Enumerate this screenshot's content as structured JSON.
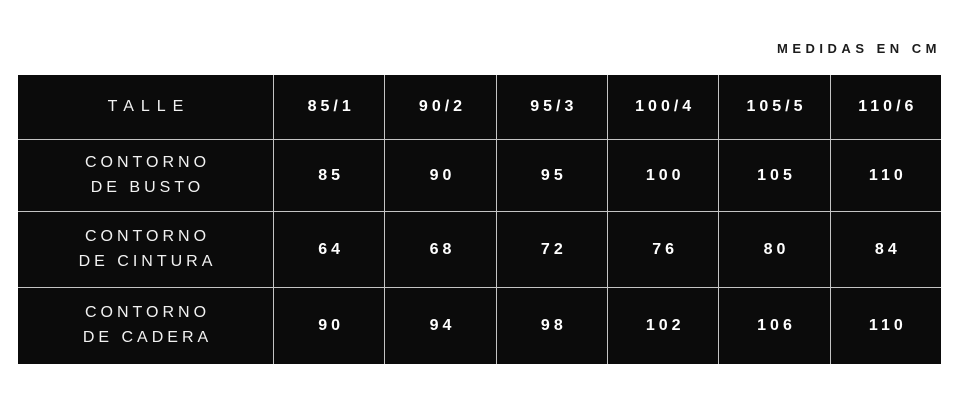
{
  "note": "MEDIDAS EN CM",
  "table": {
    "header_label": "TALLE",
    "sizes": [
      "85/1",
      "90/2",
      "95/3",
      "100/4",
      "105/5",
      "110/6"
    ],
    "rows": [
      {
        "label": [
          "CONTORNO",
          "DE BUSTO"
        ],
        "values": [
          "85",
          "90",
          "95",
          "100",
          "105",
          "110"
        ]
      },
      {
        "label": [
          "CONTORNO",
          "DE CINTURA"
        ],
        "values": [
          "64",
          "68",
          "72",
          "76",
          "80",
          "84"
        ]
      },
      {
        "label": [
          "CONTORNO",
          "DE CADERA"
        ],
        "values": [
          "90",
          "94",
          "98",
          "102",
          "106",
          "110"
        ]
      }
    ]
  },
  "colors": {
    "page_bg": "#ffffff",
    "cell_bg": "#0b0b0b",
    "grid_line": "#c4c4c4",
    "cell_text": "#ffffff",
    "note_text": "#1c1c1c"
  },
  "chart_data": {
    "type": "table",
    "title": "MEDIDAS EN CM",
    "columns": [
      "TALLE",
      "85/1",
      "90/2",
      "95/3",
      "100/4",
      "105/5",
      "110/6"
    ],
    "rows": [
      [
        "CONTORNO DE BUSTO",
        85,
        90,
        95,
        100,
        105,
        110
      ],
      [
        "CONTORNO DE CINTURA",
        64,
        68,
        72,
        76,
        80,
        84
      ],
      [
        "CONTORNO DE CADERA",
        90,
        94,
        98,
        102,
        106,
        110
      ]
    ]
  }
}
